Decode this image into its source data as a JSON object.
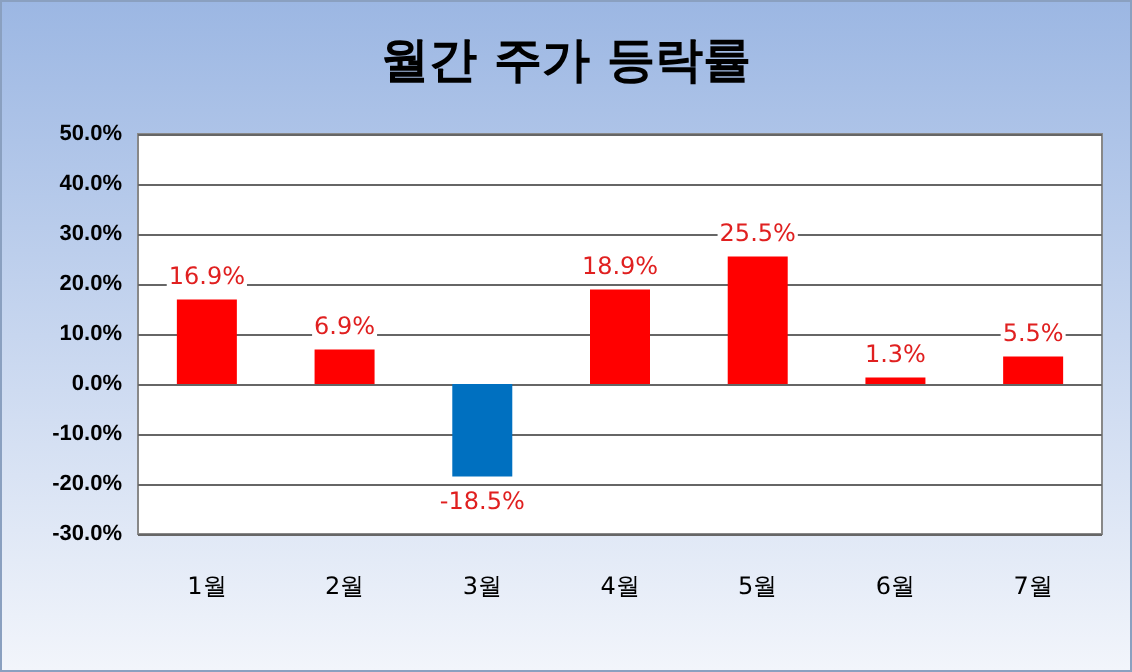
{
  "chart_data": {
    "type": "bar",
    "title": "월간 주가 등락률",
    "categories": [
      "1월",
      "2월",
      "3월",
      "4월",
      "5월",
      "6월",
      "7월"
    ],
    "values": [
      16.9,
      6.9,
      -18.5,
      18.9,
      25.5,
      1.3,
      5.5
    ],
    "colors": [
      "#ff0000",
      "#ff0000",
      "#0070c0",
      "#ff0000",
      "#ff0000",
      "#ff0000",
      "#ff0000"
    ],
    "value_labels": [
      "16.9%",
      "6.9%",
      "-18.5%",
      "18.9%",
      "25.5%",
      "1.3%",
      "5.5%"
    ],
    "ylim": [
      -30,
      50
    ],
    "yticks": [
      {
        "value": -30,
        "label": "-30.0%"
      },
      {
        "value": -20,
        "label": "-20.0%"
      },
      {
        "value": -10,
        "label": "-10.0%"
      },
      {
        "value": 0,
        "label": "0.0%"
      },
      {
        "value": 10,
        "label": "10.0%"
      },
      {
        "value": 20,
        "label": "20.0%"
      },
      {
        "value": 30,
        "label": "30.0%"
      },
      {
        "value": 40,
        "label": "40.0%"
      },
      {
        "value": 50,
        "label": "50.0%"
      }
    ],
    "grid": "y"
  }
}
